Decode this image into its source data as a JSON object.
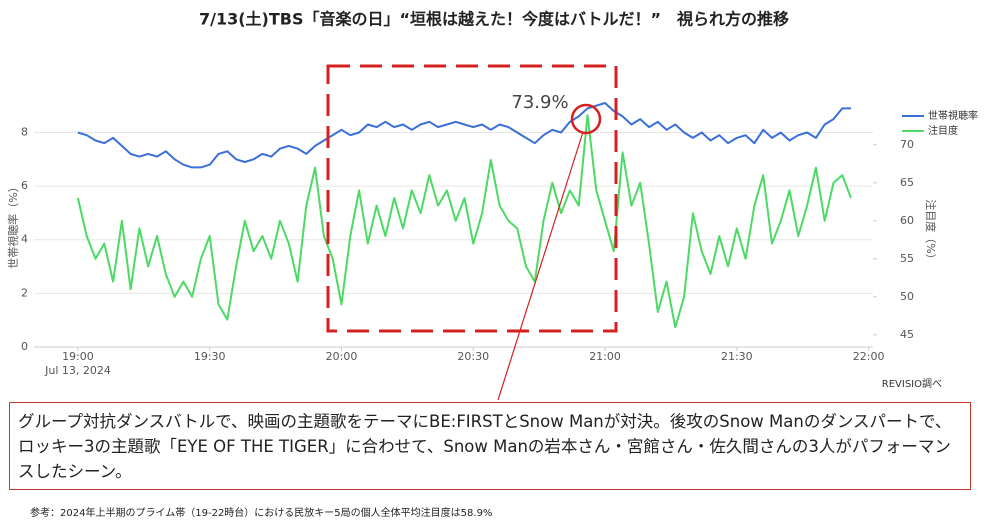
{
  "chart_data": {
    "type": "line",
    "title": "7/13(土)TBS「音楽の日」“垣根は越えた！今度はバトルだ！”　視られ方の推移",
    "y_label": "世帯視聴率（%）",
    "y2_label": "注目度（%）",
    "x_date_label": "Jul 13, 2024",
    "annotation": "73.9%",
    "source": "REVISIO調べ",
    "note": "グループ対抗ダンスバトルで、映画の主題歌をテーマにBE:FIRSTとSnow Manが対決。後攻のSnow Manのダンスパートで、ロッキー3の主題歌「EYE OF THE TIGER」に合わせて、Snow Manの岩本さん・宮館さん・佐久間さんの3人がパフォーマンスしたシーン。",
    "footnote": "参考：2024年上半期のプライム帯（19-22時台）における民放キー5局の個人全体平均注目度は58.9%",
    "x": [
      "19:00",
      "19:02",
      "19:04",
      "19:06",
      "19:08",
      "19:10",
      "19:12",
      "19:14",
      "19:16",
      "19:18",
      "19:20",
      "19:22",
      "19:24",
      "19:26",
      "19:28",
      "19:30",
      "19:32",
      "19:34",
      "19:36",
      "19:38",
      "19:40",
      "19:42",
      "19:44",
      "19:46",
      "19:48",
      "19:50",
      "19:52",
      "19:54",
      "19:56",
      "19:58",
      "20:00",
      "20:02",
      "20:04",
      "20:06",
      "20:08",
      "20:10",
      "20:12",
      "20:14",
      "20:16",
      "20:18",
      "20:20",
      "20:22",
      "20:24",
      "20:26",
      "20:28",
      "20:30",
      "20:32",
      "20:34",
      "20:36",
      "20:38",
      "20:40",
      "20:42",
      "20:44",
      "20:46",
      "20:48",
      "20:50",
      "20:52",
      "20:54",
      "20:56",
      "20:58",
      "21:00",
      "21:02",
      "21:04",
      "21:06",
      "21:08",
      "21:10",
      "21:12",
      "21:14",
      "21:16",
      "21:18",
      "21:20",
      "21:22",
      "21:24",
      "21:26",
      "21:28",
      "21:30",
      "21:32",
      "21:34",
      "21:36",
      "21:38",
      "21:40",
      "21:42",
      "21:44",
      "21:46",
      "21:48",
      "21:50",
      "21:52",
      "21:54",
      "21:56"
    ],
    "xlim": [
      "18:50",
      "22:01"
    ],
    "xticks": [
      "19:00",
      "19:30",
      "20:00",
      "20:30",
      "21:00",
      "21:30",
      "22:00"
    ],
    "ylim": [
      0,
      9.1
    ],
    "yticks": [
      0,
      2,
      4,
      6,
      8
    ],
    "y2lim": [
      43.4,
      75.5
    ],
    "y2ticks": [
      45,
      50,
      55,
      60,
      65,
      70
    ],
    "grid": true,
    "legend": "top-right",
    "series": [
      {
        "name": "世帯視聴率",
        "color": "#3b6fd8",
        "values": [
          8.0,
          7.9,
          7.7,
          7.6,
          7.8,
          7.5,
          7.2,
          7.1,
          7.2,
          7.1,
          7.3,
          7.0,
          6.8,
          6.7,
          6.7,
          6.8,
          7.2,
          7.3,
          7.0,
          6.9,
          7.0,
          7.2,
          7.1,
          7.4,
          7.5,
          7.4,
          7.2,
          7.5,
          7.7,
          7.9,
          8.1,
          7.9,
          8.0,
          8.3,
          8.2,
          8.4,
          8.2,
          8.3,
          8.1,
          8.3,
          8.4,
          8.2,
          8.3,
          8.4,
          8.3,
          8.2,
          8.3,
          8.1,
          8.3,
          8.2,
          8.0,
          7.8,
          7.6,
          7.9,
          8.1,
          8.0,
          8.4,
          8.6,
          8.9,
          9.0,
          9.1,
          8.8,
          8.6,
          8.3,
          8.5,
          8.2,
          8.4,
          8.1,
          8.3,
          8.0,
          7.8,
          8.0,
          7.7,
          7.9,
          7.6,
          7.8,
          7.9,
          7.6,
          8.1,
          7.8,
          8.0,
          7.7,
          7.9,
          8.0,
          7.8,
          8.3,
          8.5,
          8.9,
          8.9
        ]
      },
      {
        "name": "注目度",
        "color": "#4cd964",
        "axis": "y2",
        "values": [
          63,
          58,
          55,
          57,
          52,
          60,
          51,
          59,
          54,
          58,
          53,
          50,
          52,
          50,
          55,
          58,
          49,
          47,
          54,
          60,
          56,
          58,
          55,
          60,
          57,
          52,
          62,
          67,
          58,
          55,
          49,
          58,
          64,
          57,
          62,
          58,
          63,
          59,
          64,
          61,
          66,
          62,
          64,
          60,
          63,
          57,
          61,
          68,
          62,
          60,
          59,
          54,
          52,
          60,
          65,
          61,
          64,
          62,
          73.9,
          64,
          60,
          56,
          69,
          62,
          65,
          57,
          48,
          52,
          46,
          50,
          61,
          56,
          53,
          58,
          54,
          59,
          55,
          62,
          66,
          57,
          60,
          64,
          58,
          62,
          67,
          60,
          65,
          66,
          63
        ]
      }
    ]
  }
}
